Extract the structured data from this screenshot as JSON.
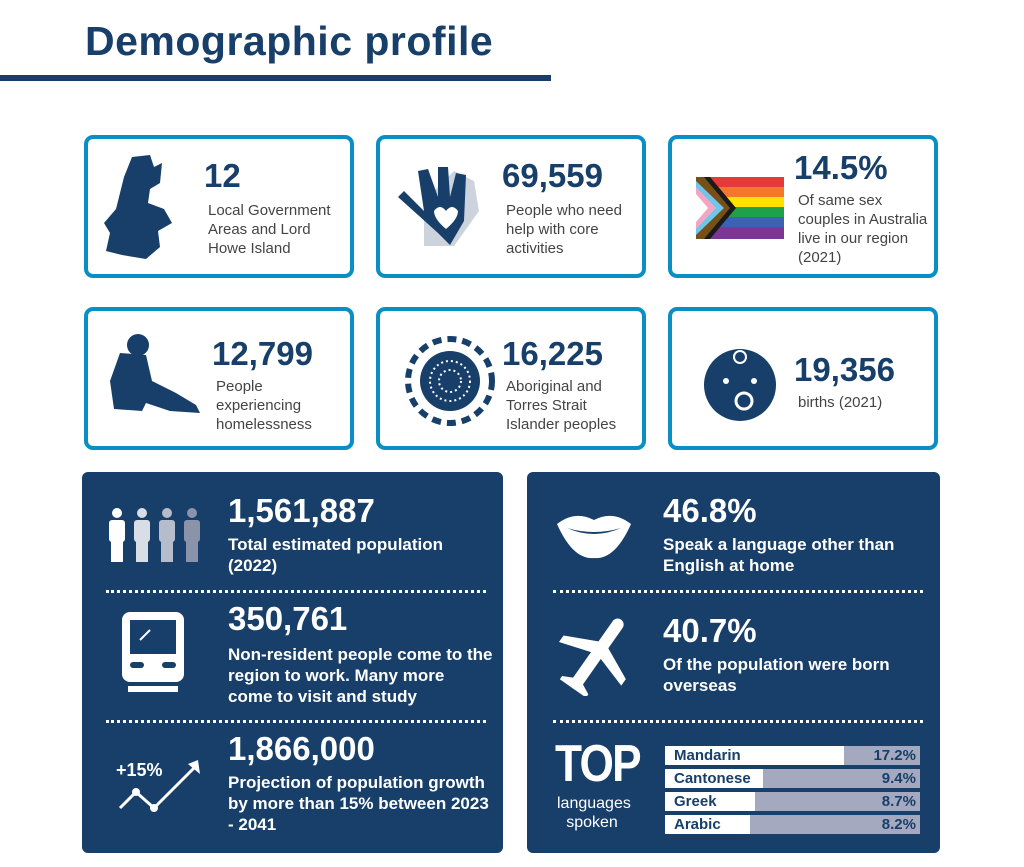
{
  "title": "Demographic profile",
  "cards": [
    {
      "num": "12",
      "text": "Local Government Areas and Lord Howe Island",
      "icon": "region-map-icon"
    },
    {
      "num": "69,559",
      "text": "People who need help with core activities",
      "icon": "helping-hand-heart-icon"
    },
    {
      "num": "14.5%",
      "text": "Of same sex couples in Australia live in our region (2021)",
      "icon": "progress-pride-flag-icon"
    },
    {
      "num": "12,799",
      "text": "People experiencing homelessness",
      "icon": "seated-person-icon"
    },
    {
      "num": "16,225",
      "text": "Aboriginal and Torres Strait Islander peoples",
      "icon": "aboriginal-dot-art-icon"
    },
    {
      "num": "19,356",
      "text": "births (2021)",
      "icon": "baby-face-icon"
    }
  ],
  "left_panel": [
    {
      "num": "1,561,887",
      "text": "Total estimated population (2022)",
      "icon": "people-icon"
    },
    {
      "num": "350,761",
      "text": "Non-resident people come to the region to work. Many more come to visit and study",
      "icon": "train-icon"
    },
    {
      "num": "1,866,000",
      "text": "Projection of population growth by more than 15% between 2023 - 2041",
      "icon": "growth-chart-icon",
      "icon_label": "+15%"
    }
  ],
  "right_panel": [
    {
      "num": "46.8%",
      "text": "Speak a language other than English at home",
      "icon": "mouth-icon"
    },
    {
      "num": "40.7%",
      "text": "Of the population were born overseas",
      "icon": "airplane-icon"
    }
  ],
  "languages": {
    "heading": "TOP",
    "sub": "languages spoken",
    "items": [
      {
        "name": "Mandarin",
        "pct": "17.2%",
        "value": 17.2
      },
      {
        "name": "Cantonese",
        "pct": "9.4%",
        "value": 9.4
      },
      {
        "name": "Greek",
        "pct": "8.7%",
        "value": 8.7
      },
      {
        "name": "Arabic",
        "pct": "8.2%",
        "value": 8.2
      }
    ]
  },
  "colors": {
    "navy": "#173f69",
    "border": "#0a8fc4"
  }
}
